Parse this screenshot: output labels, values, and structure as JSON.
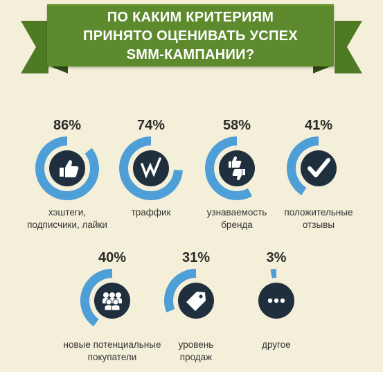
{
  "header": {
    "title_lines": [
      "ПО КАКИМ КРИТЕРИЯМ",
      "ПРИНЯТО ОЦЕНИВАТЬ УСПЕХ",
      "SMM-КАМПАНИИ?"
    ]
  },
  "colors": {
    "banner": "#5e8a2e",
    "ring": "#4e9ed7",
    "icon_bg": "#1f2f3d",
    "background": "#f4efd9",
    "text": "#2a2a2a"
  },
  "chart_data": {
    "type": "bar",
    "title": "ПО КАКИМ КРИТЕРИЯМ ПРИНЯТО ОЦЕНИВАТЬ УСПЕХ SMM-КАМПАНИИ?",
    "unit": "%",
    "categories": [
      [
        "хэштеги,",
        "подписчики, лайки"
      ],
      [
        "траффик"
      ],
      [
        "узнаваемость",
        "бренда"
      ],
      [
        "положительные",
        "отзывы"
      ],
      [
        "новые потенциальные",
        "покупатели"
      ],
      [
        "уровень",
        "продаж"
      ],
      [
        "другое"
      ]
    ],
    "values": [
      86,
      74,
      58,
      41,
      40,
      31,
      3
    ],
    "value_labels": [
      "86%",
      "74%",
      "58%",
      "41%",
      "40%",
      "31%",
      "3%"
    ],
    "icons": [
      "thumbs-up-icon",
      "zigzag-icon",
      "thumbs-up-down-icon",
      "checkmark-icon",
      "people-icon",
      "price-tag-icon",
      "ellipsis-icon"
    ]
  }
}
